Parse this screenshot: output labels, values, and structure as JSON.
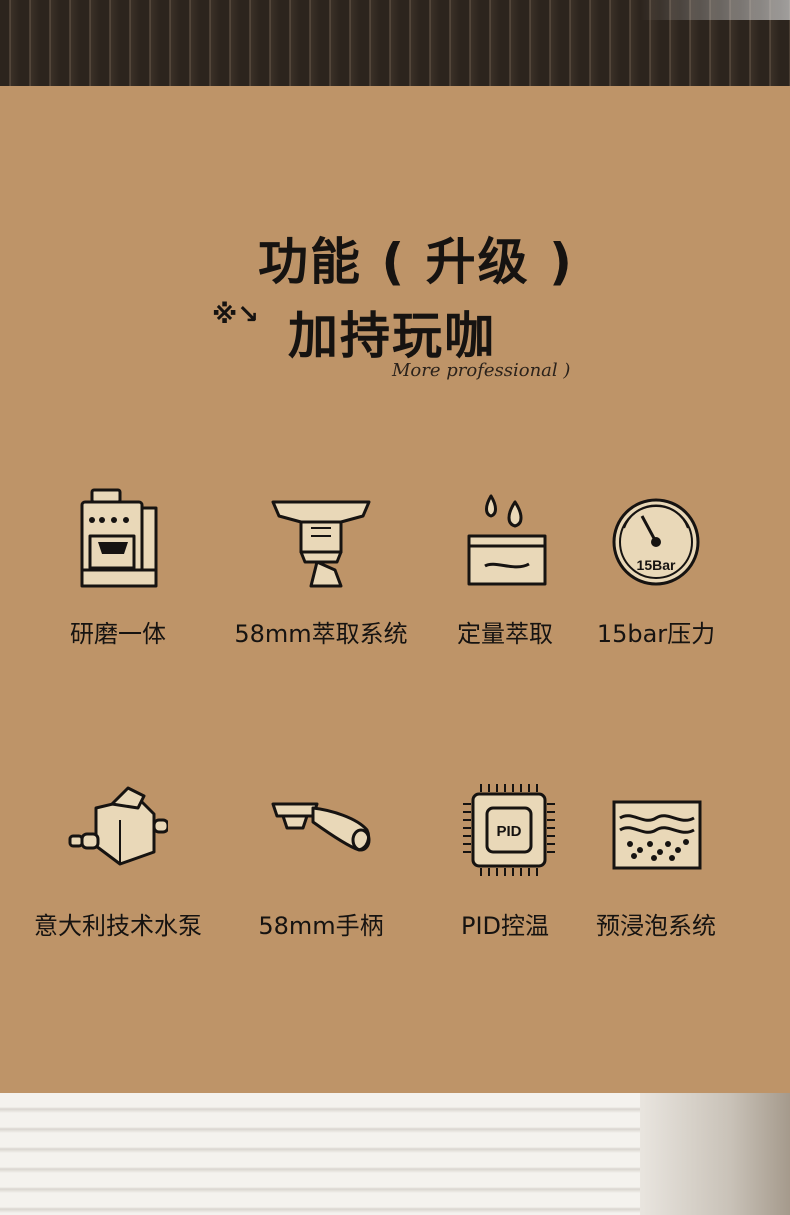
{
  "header": {
    "title_line1": "功能 ( 升级 )",
    "title_symbols": "※↘",
    "title_line2": "加持玩咖",
    "subtitle": "More professional )"
  },
  "features": [
    {
      "label": "研磨一体",
      "icon": "espresso-machine-icon"
    },
    {
      "label": "58mm萃取系统",
      "icon": "brew-group-icon"
    },
    {
      "label": "定量萃取",
      "icon": "water-drops-container-icon"
    },
    {
      "label": "15bar压力",
      "icon": "pressure-gauge-icon",
      "gauge_text": "15Bar"
    },
    {
      "label": "意大利技术水泵",
      "icon": "water-pump-icon"
    },
    {
      "label": "58mm手柄",
      "icon": "portafilter-handle-icon"
    },
    {
      "label": "PID控温",
      "icon": "pid-chip-icon",
      "chip_text": "PID"
    },
    {
      "label": "预浸泡系统",
      "icon": "pre-infusion-tank-icon"
    }
  ],
  "colors": {
    "background": "#be9468",
    "text": "#161311",
    "icon_fill": "#e9d8b8",
    "icon_stroke": "#161311"
  }
}
